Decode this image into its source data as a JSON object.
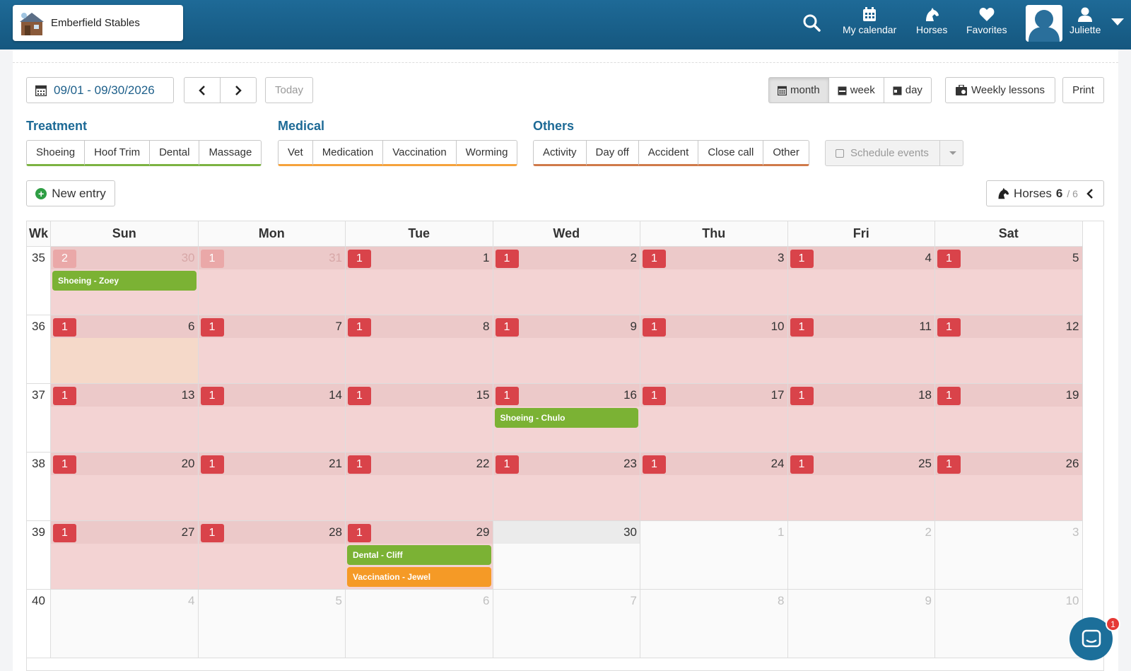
{
  "header": {
    "brand": "Emberfield Stables",
    "nav": [
      {
        "label": "My calendar",
        "icon": "calendar-icon"
      },
      {
        "label": "Horses",
        "icon": "horse-icon"
      },
      {
        "label": "Favorites",
        "icon": "heart-icon"
      },
      {
        "label": "Juliette",
        "icon": "user-icon"
      }
    ]
  },
  "toolbar": {
    "date_range": "09/01 - 09/30/2026",
    "today": "Today",
    "views": [
      "month",
      "week",
      "day"
    ],
    "active_view": "month",
    "weekly_lessons": "Weekly lessons",
    "print": "Print"
  },
  "filters": {
    "treatment": {
      "title": "Treatment",
      "items": [
        "Shoeing",
        "Hoof Trim",
        "Dental",
        "Massage"
      ],
      "color": "#7cb342"
    },
    "medical": {
      "title": "Medical",
      "items": [
        "Vet",
        "Medication",
        "Vaccination",
        "Worming"
      ],
      "color": "#f5a23c"
    },
    "others": {
      "title": "Others",
      "items": [
        "Activity",
        "Day off",
        "Accident",
        "Close call",
        "Other"
      ],
      "color": "#d07a4a"
    },
    "schedule_events": "Schedule events"
  },
  "actions": {
    "new_entry": "New entry",
    "horses_label": "Horses",
    "horses_count": "6",
    "horses_total": "/ 6"
  },
  "calendar": {
    "wk_label": "Wk",
    "days": [
      "Sun",
      "Mon",
      "Tue",
      "Wed",
      "Thu",
      "Fri",
      "Sat"
    ],
    "weeks": [
      {
        "wk": "35",
        "cells": [
          {
            "n": "30",
            "other": true,
            "badge": "2",
            "bg": "red",
            "events": [
              {
                "label": "Shoeing - Zoey",
                "color": "green"
              }
            ]
          },
          {
            "n": "31",
            "other": true,
            "badge": "1",
            "bg": "red"
          },
          {
            "n": "1",
            "badge": "1",
            "bg": "red"
          },
          {
            "n": "2",
            "badge": "1",
            "bg": "red"
          },
          {
            "n": "3",
            "badge": "1",
            "bg": "red"
          },
          {
            "n": "4",
            "badge": "1",
            "bg": "red"
          },
          {
            "n": "5",
            "badge": "1",
            "bg": "red"
          }
        ]
      },
      {
        "wk": "36",
        "cells": [
          {
            "n": "6",
            "badge": "1",
            "bg": "peach"
          },
          {
            "n": "7",
            "badge": "1",
            "bg": "red"
          },
          {
            "n": "8",
            "badge": "1",
            "bg": "red"
          },
          {
            "n": "9",
            "badge": "1",
            "bg": "red"
          },
          {
            "n": "10",
            "badge": "1",
            "bg": "red"
          },
          {
            "n": "11",
            "badge": "1",
            "bg": "red"
          },
          {
            "n": "12",
            "badge": "1",
            "bg": "red"
          }
        ]
      },
      {
        "wk": "37",
        "cells": [
          {
            "n": "13",
            "badge": "1",
            "bg": "red"
          },
          {
            "n": "14",
            "badge": "1",
            "bg": "red"
          },
          {
            "n": "15",
            "badge": "1",
            "bg": "red"
          },
          {
            "n": "16",
            "badge": "1",
            "bg": "red",
            "events": [
              {
                "label": "Shoeing - Chulo",
                "color": "green"
              }
            ]
          },
          {
            "n": "17",
            "badge": "1",
            "bg": "red"
          },
          {
            "n": "18",
            "badge": "1",
            "bg": "red"
          },
          {
            "n": "19",
            "badge": "1",
            "bg": "red"
          }
        ]
      },
      {
        "wk": "38",
        "cells": [
          {
            "n": "20",
            "badge": "1",
            "bg": "red"
          },
          {
            "n": "21",
            "badge": "1",
            "bg": "red"
          },
          {
            "n": "22",
            "badge": "1",
            "bg": "red"
          },
          {
            "n": "23",
            "badge": "1",
            "bg": "red"
          },
          {
            "n": "24",
            "badge": "1",
            "bg": "red"
          },
          {
            "n": "25",
            "badge": "1",
            "bg": "red"
          },
          {
            "n": "26",
            "badge": "1",
            "bg": "red"
          }
        ]
      },
      {
        "wk": "39",
        "cells": [
          {
            "n": "27",
            "badge": "1",
            "bg": "red"
          },
          {
            "n": "28",
            "badge": "1",
            "bg": "red"
          },
          {
            "n": "29",
            "badge": "1",
            "bg": "red",
            "events": [
              {
                "label": "Dental - Cliff",
                "color": "green"
              },
              {
                "label": "Vaccination - Jewel",
                "color": "orange"
              }
            ]
          },
          {
            "n": "30",
            "bg": "grey"
          },
          {
            "n": "1",
            "other": true
          },
          {
            "n": "2",
            "other": true
          },
          {
            "n": "3",
            "other": true
          }
        ]
      },
      {
        "wk": "40",
        "cells": [
          {
            "n": "4",
            "other": true
          },
          {
            "n": "5",
            "other": true
          },
          {
            "n": "6",
            "other": true
          },
          {
            "n": "7",
            "other": true
          },
          {
            "n": "8",
            "other": true
          },
          {
            "n": "9",
            "other": true
          },
          {
            "n": "10",
            "other": true
          }
        ]
      }
    ]
  },
  "chat": {
    "badge": "1"
  }
}
